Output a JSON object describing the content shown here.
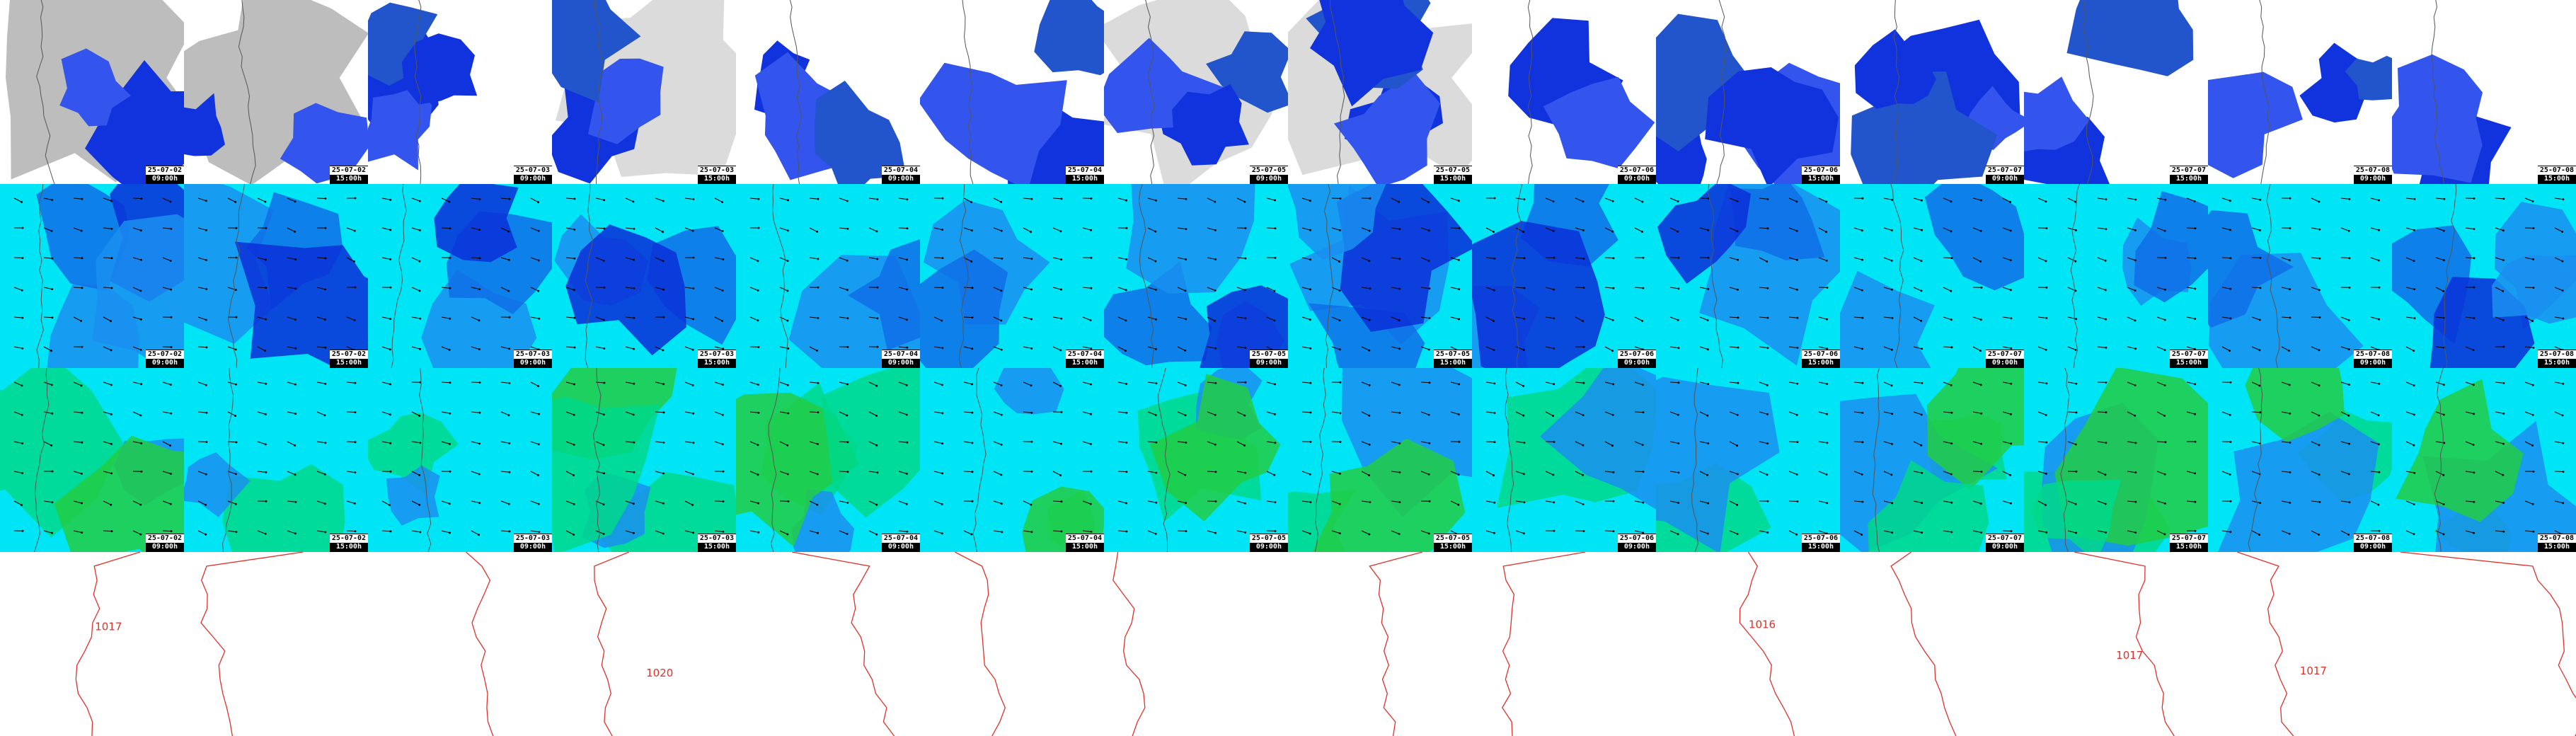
{
  "panels": {
    "columns": 14,
    "rows": [
      {
        "name": "precipitation",
        "background": "#ffffff",
        "fill_colors": [
          "#1133dd",
          "#3355ee",
          "#2255cc"
        ],
        "cloud_color": "#bdbdbd"
      },
      {
        "name": "wind-upper",
        "background": "#00e5f5",
        "fill_colors": [
          "#1a8ff0",
          "#0f6fe8",
          "#0a2fd8"
        ]
      },
      {
        "name": "wind-lower",
        "background": "#00e5f5",
        "fill_colors": [
          "#00d88a",
          "#1a8ff0",
          "#22cc44"
        ]
      },
      {
        "name": "pressure",
        "background": "#ffffff",
        "fill_colors": []
      }
    ],
    "column_stamps": [
      {
        "date": "25-07-02",
        "time": "09:00h"
      },
      {
        "date": "25-07-02",
        "time": "15:00h"
      },
      {
        "date": "25-07-03",
        "time": "09:00h"
      },
      {
        "date": "25-07-03",
        "time": "15:00h"
      },
      {
        "date": "25-07-04",
        "time": "09:00h"
      },
      {
        "date": "25-07-04",
        "time": "15:00h"
      },
      {
        "date": "25-07-05",
        "time": "09:00h"
      },
      {
        "date": "25-07-05",
        "time": "15:00h"
      },
      {
        "date": "25-07-06",
        "time": "09:00h"
      },
      {
        "date": "25-07-06",
        "time": "15:00h"
      },
      {
        "date": "25-07-07",
        "time": "09:00h"
      },
      {
        "date": "25-07-07",
        "time": "15:00h"
      },
      {
        "date": "25-07-08",
        "time": "09:00h"
      },
      {
        "date": "25-07-08",
        "time": "15:00h"
      }
    ],
    "isobar_color": "#e0302a",
    "coastline_color": "#555555",
    "arrow_color": "#000000",
    "isobar_labels": [
      {
        "column": 0,
        "text": "1017"
      },
      {
        "column": 3,
        "text": "1020"
      },
      {
        "column": 9,
        "text": "1016"
      },
      {
        "column": 11,
        "text": "1017"
      },
      {
        "column": 12,
        "text": "1017"
      }
    ]
  }
}
